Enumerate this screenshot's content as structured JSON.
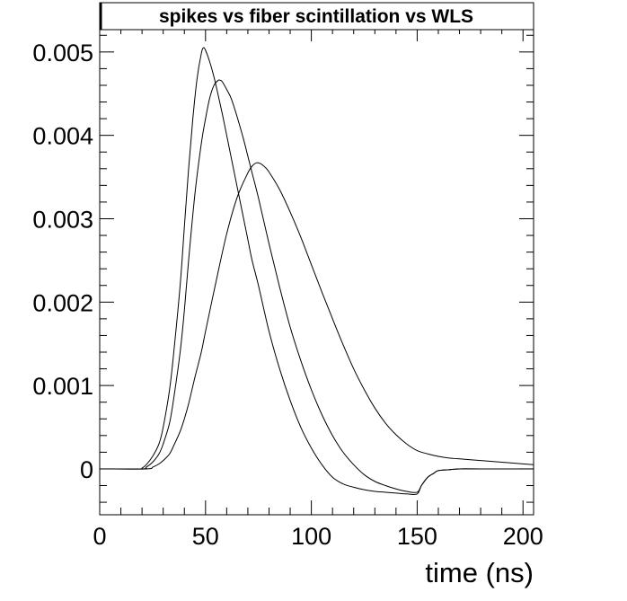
{
  "chart_data": {
    "type": "line",
    "title": "spikes vs fiber scintillation vs WLS",
    "xlabel": "time (ns)",
    "ylabel": "",
    "xlim": [
      0,
      205
    ],
    "ylim": [
      -0.00055,
      0.0053
    ],
    "x_ticks": [
      0,
      50,
      100,
      150,
      200
    ],
    "x_tick_labels": [
      "0",
      "50",
      "100",
      "150",
      "200"
    ],
    "y_ticks": [
      0,
      0.001,
      0.002,
      0.003,
      0.004,
      0.005
    ],
    "y_tick_labels": [
      "0",
      "0.001",
      "0.002",
      "0.003",
      "0.004",
      "0.005"
    ],
    "grid": false,
    "series": [
      {
        "x": [
          0,
          18,
          20,
          22,
          25,
          28,
          30,
          33,
          35,
          38,
          40,
          42,
          44,
          46,
          48,
          49,
          50,
          52,
          54,
          56,
          58,
          60,
          62,
          64,
          66,
          68,
          70,
          72,
          75,
          80,
          85,
          90,
          95,
          100,
          105,
          110,
          115,
          120,
          125,
          130,
          135,
          140,
          145,
          150,
          152,
          155,
          158,
          160,
          165,
          170,
          175,
          180,
          190,
          205
        ],
        "y": [
          0,
          0,
          1e-05,
          5e-05,
          0.00015,
          0.0003,
          0.0005,
          0.00095,
          0.0014,
          0.0022,
          0.0029,
          0.0036,
          0.0042,
          0.00468,
          0.00498,
          0.00505,
          0.00502,
          0.00488,
          0.0047,
          0.00448,
          0.00425,
          0.004,
          0.00375,
          0.0035,
          0.00325,
          0.003,
          0.00275,
          0.0025,
          0.0022,
          0.00165,
          0.0012,
          0.00082,
          0.0005,
          0.00025,
          5e-05,
          -0.0001,
          -0.00018,
          -0.00022,
          -0.00025,
          -0.00027,
          -0.00028,
          -0.00029,
          -0.0003,
          -0.0003,
          -0.0002,
          -0.0001,
          -5e-05,
          -2e-05,
          -1e-05,
          0,
          0,
          0,
          0,
          0
        ]
      },
      {
        "x": [
          0,
          20,
          22,
          25,
          28,
          30,
          33,
          35,
          38,
          40,
          42,
          45,
          48,
          50,
          52,
          54,
          56,
          57,
          58,
          60,
          62,
          64,
          66,
          68,
          70,
          72,
          75,
          80,
          85,
          90,
          95,
          100,
          105,
          110,
          115,
          120,
          125,
          130,
          135,
          140,
          145,
          150,
          152,
          155,
          158,
          160,
          165,
          170,
          180,
          190,
          205
        ],
        "y": [
          0,
          0,
          2e-05,
          8e-05,
          0.00018,
          0.0003,
          0.00055,
          0.00085,
          0.0014,
          0.0019,
          0.0025,
          0.0033,
          0.0039,
          0.0042,
          0.00445,
          0.0046,
          0.00466,
          0.00466,
          0.00464,
          0.00455,
          0.00445,
          0.0043,
          0.00413,
          0.00395,
          0.00375,
          0.00355,
          0.00325,
          0.0027,
          0.00218,
          0.0017,
          0.0013,
          0.00095,
          0.00065,
          0.0004,
          0.0002,
          5e-05,
          -7e-05,
          -0.00015,
          -0.0002,
          -0.00024,
          -0.00027,
          -0.00028,
          -0.0002,
          -0.0001,
          -5e-05,
          -2e-05,
          -1e-05,
          0,
          0,
          0,
          0
        ]
      },
      {
        "x": [
          0,
          22,
          25,
          28,
          30,
          33,
          35,
          38,
          40,
          42,
          45,
          48,
          50,
          55,
          60,
          65,
          70,
          72,
          74,
          76,
          78,
          80,
          85,
          90,
          95,
          100,
          105,
          110,
          115,
          120,
          125,
          130,
          135,
          140,
          145,
          150,
          155,
          160,
          165,
          170,
          180,
          190,
          200,
          205
        ],
        "y": [
          0,
          0,
          2e-05,
          6e-05,
          0.0001,
          0.00018,
          0.00028,
          0.00045,
          0.0006,
          0.00078,
          0.0011,
          0.0014,
          0.00165,
          0.00225,
          0.00282,
          0.00326,
          0.00355,
          0.00363,
          0.00367,
          0.00366,
          0.00362,
          0.00356,
          0.00335,
          0.00308,
          0.00278,
          0.00245,
          0.00212,
          0.0018,
          0.00149,
          0.0012,
          0.00095,
          0.00073,
          0.00055,
          0.00041,
          0.0003,
          0.00022,
          0.00018,
          0.00015,
          0.00013,
          0.00012,
          0.0001,
          8e-05,
          6e-05,
          5e-05
        ]
      }
    ]
  }
}
